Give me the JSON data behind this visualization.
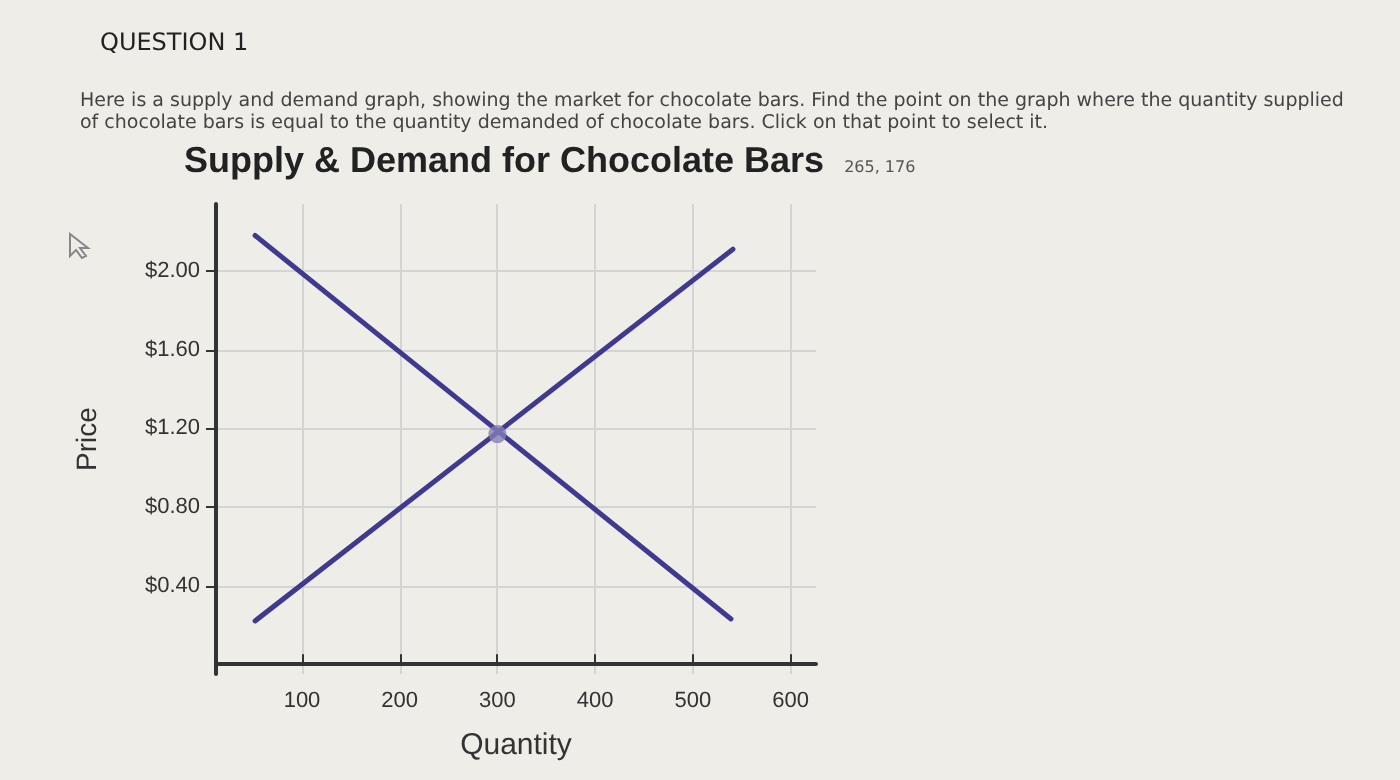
{
  "chart_data": {
    "type": "line",
    "title": "Supply & Demand for Chocolate Bars",
    "annotations": [
      "QUESTION 1",
      "Here is a supply and demand graph, showing the market for chocolate bars. Find the point on the graph where the quantity supplied of chocolate bars is equal to the quantity demanded of chocolate bars. Click on that point to select it.",
      "265, 176"
    ],
    "xlabel": "Quantity",
    "ylabel": "Price",
    "xlim": [
      12,
      626
    ],
    "ylim": [
      -0.05,
      2.34
    ],
    "xticks": [
      100,
      200,
      300,
      400,
      500,
      600
    ],
    "yticks": [
      {
        "value": 0.4,
        "label": "$0.40"
      },
      {
        "value": 0.8,
        "label": "$0.80"
      },
      {
        "value": 1.2,
        "label": "$1.20"
      },
      {
        "value": 1.6,
        "label": "$1.60"
      },
      {
        "value": 2.0,
        "label": "$2.00"
      }
    ],
    "grid": true,
    "marker": "none",
    "line_style": "solid",
    "series": [
      {
        "color": "#3f3a8f",
        "x": [
          52,
          539
        ],
        "values": [
          2.18,
          0.23
        ]
      },
      {
        "color": "#3f3a8f",
        "x": [
          52,
          541
        ],
        "values": [
          0.22,
          2.11
        ]
      },
      {
        "type": "scatter",
        "marker": "circle",
        "color": "#8580b5",
        "x": [
          300
        ],
        "values": [
          1.17
        ]
      }
    ]
  }
}
